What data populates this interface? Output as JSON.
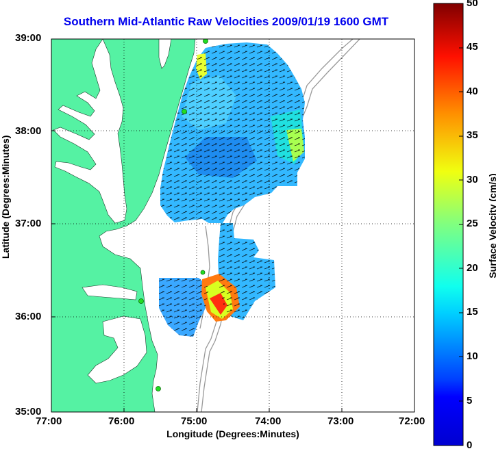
{
  "title": "Southern Mid-Atlantic Raw Velocities 2009/01/19 1600 GMT",
  "xlabel": "Longitude (Degrees:Minutes)",
  "ylabel": "Latitude (Degrees:Minutes)",
  "x_ticks": [
    "77:00",
    "76:00",
    "75:00",
    "74:00",
    "73:00",
    "72:00"
  ],
  "y_ticks": [
    "39:00",
    "38:00",
    "37:00",
    "36:00",
    "35:00"
  ],
  "colorbar": {
    "label": "Surface Velocity (cm/s)",
    "ticks": [
      "50",
      "45",
      "40",
      "35",
      "30",
      "25",
      "20",
      "15",
      "10",
      "5",
      "0"
    ],
    "range": [
      0,
      50
    ]
  },
  "colors": {
    "land": "#55f2a3",
    "title": "#0000ee",
    "bathymetry": "#999999",
    "stations": "#22dd22"
  },
  "map_extent": {
    "lon": [
      -77,
      -72
    ],
    "lat": [
      35,
      39
    ]
  },
  "stations_count_shown": 5
}
